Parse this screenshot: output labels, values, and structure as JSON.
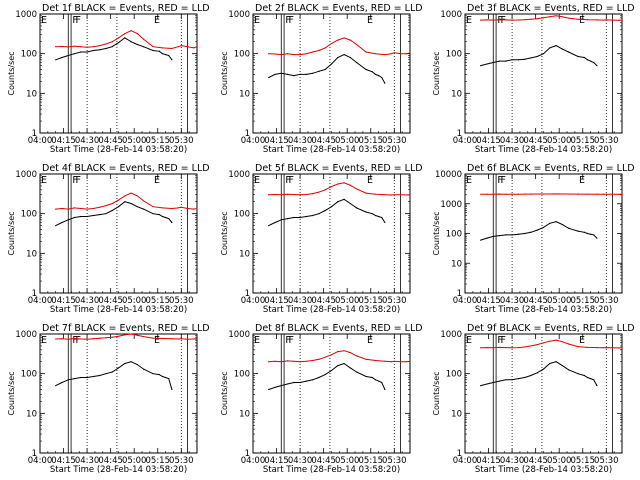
{
  "figure": {
    "x_tick_labels": [
      "04:00",
      "04:15",
      "04:30",
      "04:45",
      "05:00",
      "05:15",
      "05:30"
    ],
    "x_label": "Start Time (28-Feb-14 03:58:20)",
    "y_label": "Counts/sec",
    "flag_labels": [
      "E",
      "F",
      "F",
      "E"
    ],
    "colors": {
      "events": "#000000",
      "lld": "#e00000",
      "frame": "#000000"
    }
  },
  "chart_data": [
    {
      "type": "line",
      "title": "Det 1f BLACK = Events, RED = LLD",
      "xlabel": "Start Time (28-Feb-14 03:58:20)",
      "ylabel": "Counts/sec",
      "y_scale": "log",
      "ylim": [
        1,
        1000
      ],
      "y_tick_labels": [
        "1",
        "10",
        "100",
        "1000"
      ],
      "x_range_minutes": [
        0,
        100
      ],
      "series": [
        {
          "name": "LLD",
          "x": [
            10,
            14,
            18,
            22,
            26,
            30,
            34,
            38,
            42,
            46,
            50,
            54,
            58,
            62,
            66,
            72,
            78,
            84,
            88,
            90,
            94,
            98,
            100
          ],
          "y": [
            150,
            152,
            148,
            155,
            150,
            145,
            150,
            160,
            175,
            200,
            250,
            320,
            380,
            320,
            230,
            150,
            140,
            135,
            150,
            160,
            150,
            140,
            150
          ]
        },
        {
          "name": "Events",
          "x": [
            10,
            14,
            18,
            22,
            26,
            30,
            34,
            38,
            42,
            46,
            50,
            54,
            58,
            62,
            66,
            72,
            76,
            78,
            80,
            82,
            84
          ],
          "y": [
            70,
            80,
            90,
            100,
            110,
            110,
            120,
            125,
            135,
            150,
            190,
            250,
            200,
            170,
            150,
            120,
            115,
            100,
            95,
            90,
            70
          ]
        }
      ]
    },
    {
      "type": "line",
      "title": "Det 2f BLACK = Events, RED = LLD",
      "xlabel": "Start Time (28-Feb-14 03:58:20)",
      "ylabel": "Counts/sec",
      "y_scale": "log",
      "ylim": [
        1,
        1000
      ],
      "y_tick_labels": [
        "1",
        "10",
        "100",
        "1000"
      ],
      "x_range_minutes": [
        0,
        100
      ],
      "series": [
        {
          "name": "LLD",
          "x": [
            10,
            14,
            18,
            22,
            26,
            30,
            34,
            38,
            42,
            46,
            50,
            54,
            58,
            62,
            66,
            72,
            78,
            84,
            88,
            90,
            94,
            98,
            100
          ],
          "y": [
            100,
            98,
            95,
            100,
            95,
            95,
            100,
            110,
            120,
            140,
            180,
            220,
            250,
            220,
            170,
            110,
            100,
            95,
            100,
            105,
            100,
            100,
            105
          ]
        },
        {
          "name": "Events",
          "x": [
            10,
            14,
            18,
            22,
            26,
            30,
            34,
            38,
            42,
            46,
            50,
            54,
            58,
            62,
            66,
            72,
            76,
            78,
            80,
            82,
            84
          ],
          "y": [
            25,
            30,
            32,
            30,
            28,
            30,
            30,
            32,
            36,
            40,
            55,
            80,
            95,
            80,
            60,
            40,
            35,
            30,
            28,
            25,
            18
          ]
        }
      ]
    },
    {
      "type": "line",
      "title": "Det 3f BLACK = Events, RED = LLD",
      "xlabel": "Start Time (28-Feb-14 03:58:20)",
      "ylabel": "Counts/sec",
      "y_scale": "log",
      "ylim": [
        1,
        1000
      ],
      "y_tick_labels": [
        "1",
        "10",
        "100",
        "1000"
      ],
      "x_range_minutes": [
        0,
        100
      ],
      "series": [
        {
          "name": "LLD",
          "x": [
            10,
            14,
            18,
            22,
            26,
            30,
            34,
            38,
            42,
            46,
            50,
            54,
            58,
            62,
            66,
            72,
            78,
            84,
            88,
            90,
            94,
            98,
            100
          ],
          "y": [
            700,
            710,
            700,
            720,
            710,
            700,
            705,
            720,
            740,
            760,
            800,
            850,
            900,
            850,
            790,
            740,
            720,
            710,
            700,
            710,
            700,
            695,
            700
          ]
        },
        {
          "name": "Events",
          "x": [
            10,
            14,
            18,
            22,
            26,
            30,
            34,
            38,
            42,
            46,
            50,
            54,
            58,
            62,
            66,
            72,
            76,
            78,
            80,
            82,
            84
          ],
          "y": [
            50,
            55,
            60,
            65,
            65,
            70,
            70,
            72,
            78,
            85,
            100,
            140,
            160,
            130,
            110,
            85,
            80,
            70,
            65,
            60,
            50
          ]
        }
      ]
    },
    {
      "type": "line",
      "title": "Det 4f BLACK = Events, RED = LLD",
      "xlabel": "Start Time (28-Feb-14 03:58:20)",
      "ylabel": "Counts/sec",
      "y_scale": "log",
      "ylim": [
        1,
        1000
      ],
      "y_tick_labels": [
        "1",
        "10",
        "100",
        "1000"
      ],
      "x_range_minutes": [
        0,
        100
      ],
      "series": [
        {
          "name": "LLD",
          "x": [
            10,
            14,
            18,
            22,
            26,
            30,
            34,
            38,
            42,
            46,
            50,
            54,
            58,
            62,
            66,
            72,
            78,
            84,
            88,
            90,
            94,
            98,
            100
          ],
          "y": [
            130,
            135,
            130,
            140,
            135,
            130,
            135,
            145,
            160,
            180,
            220,
            280,
            330,
            280,
            210,
            150,
            140,
            135,
            140,
            145,
            135,
            130,
            135
          ]
        },
        {
          "name": "Events",
          "x": [
            10,
            14,
            18,
            22,
            26,
            30,
            34,
            38,
            42,
            46,
            50,
            54,
            58,
            62,
            66,
            72,
            76,
            78,
            80,
            82,
            84
          ],
          "y": [
            50,
            60,
            70,
            80,
            85,
            85,
            90,
            95,
            100,
            120,
            150,
            200,
            180,
            150,
            130,
            100,
            95,
            85,
            80,
            75,
            60
          ]
        }
      ]
    },
    {
      "type": "line",
      "title": "Det 5f BLACK = Events, RED = LLD",
      "xlabel": "Start Time (28-Feb-14 03:58:20)",
      "ylabel": "Counts/sec",
      "y_scale": "log",
      "ylim": [
        1,
        1000
      ],
      "y_tick_labels": [
        "1",
        "10",
        "100",
        "1000"
      ],
      "x_range_minutes": [
        0,
        100
      ],
      "series": [
        {
          "name": "LLD",
          "x": [
            10,
            14,
            18,
            22,
            26,
            30,
            34,
            38,
            42,
            46,
            50,
            54,
            58,
            62,
            66,
            72,
            78,
            84,
            88,
            90,
            94,
            98,
            100
          ],
          "y": [
            300,
            305,
            300,
            310,
            305,
            300,
            305,
            320,
            350,
            400,
            480,
            560,
            600,
            520,
            420,
            330,
            310,
            300,
            295,
            300,
            300,
            295,
            300
          ]
        },
        {
          "name": "Events",
          "x": [
            10,
            14,
            18,
            22,
            26,
            30,
            34,
            38,
            42,
            46,
            50,
            54,
            58,
            62,
            66,
            72,
            76,
            78,
            80,
            82,
            84
          ],
          "y": [
            50,
            60,
            70,
            75,
            80,
            80,
            85,
            90,
            100,
            120,
            150,
            200,
            230,
            180,
            140,
            110,
            100,
            90,
            85,
            80,
            60
          ]
        }
      ]
    },
    {
      "type": "line",
      "title": "Det 6f BLACK = Events, RED = LLD",
      "xlabel": "Start Time (28-Feb-14 03:58:20)",
      "ylabel": "Counts/sec",
      "y_scale": "log",
      "ylim": [
        1,
        10000
      ],
      "y_tick_labels": [
        "1",
        "10",
        "100",
        "1000",
        "10000"
      ],
      "x_range_minutes": [
        0,
        100
      ],
      "series": [
        {
          "name": "LLD",
          "x": [
            10,
            14,
            18,
            22,
            26,
            30,
            34,
            38,
            42,
            46,
            50,
            54,
            58,
            62,
            66,
            72,
            78,
            84,
            88,
            90,
            94,
            98,
            100
          ],
          "y": [
            2100,
            2100,
            2100,
            2110,
            2100,
            2100,
            2100,
            2110,
            2110,
            2120,
            2120,
            2130,
            2140,
            2130,
            2120,
            2110,
            2100,
            2100,
            2100,
            2100,
            2100,
            2100,
            2100
          ]
        },
        {
          "name": "Events",
          "x": [
            10,
            14,
            18,
            22,
            26,
            30,
            34,
            38,
            42,
            46,
            50,
            54,
            58,
            62,
            66,
            72,
            76,
            78,
            80,
            82,
            84
          ],
          "y": [
            60,
            70,
            80,
            85,
            90,
            90,
            95,
            100,
            110,
            130,
            160,
            220,
            250,
            200,
            150,
            120,
            110,
            100,
            95,
            90,
            70
          ]
        }
      ]
    },
    {
      "type": "line",
      "title": "Det 7f BLACK = Events, RED = LLD",
      "xlabel": "Start Time (28-Feb-14 03:58:20)",
      "ylabel": "Counts/sec",
      "y_scale": "log",
      "ylim": [
        1,
        1000
      ],
      "y_tick_labels": [
        "1",
        "10",
        "100",
        "1000"
      ],
      "x_range_minutes": [
        0,
        100
      ],
      "series": [
        {
          "name": "LLD",
          "x": [
            10,
            14,
            18,
            22,
            26,
            30,
            34,
            38,
            42,
            46,
            50,
            54,
            58,
            62,
            66,
            72,
            78,
            84,
            88,
            90,
            94,
            98,
            100
          ],
          "y": [
            750,
            760,
            740,
            770,
            750,
            740,
            760,
            780,
            800,
            830,
            880,
            950,
            1000,
            930,
            860,
            790,
            770,
            760,
            750,
            760,
            740,
            750,
            760
          ]
        },
        {
          "name": "Events",
          "x": [
            10,
            14,
            18,
            22,
            26,
            30,
            34,
            38,
            42,
            46,
            50,
            54,
            58,
            62,
            66,
            72,
            76,
            78,
            80,
            82,
            84
          ],
          "y": [
            50,
            60,
            70,
            75,
            80,
            80,
            85,
            90,
            100,
            110,
            140,
            180,
            200,
            170,
            130,
            100,
            95,
            85,
            80,
            75,
            40
          ]
        }
      ]
    },
    {
      "type": "line",
      "title": "Det 8f BLACK = Events, RED = LLD",
      "xlabel": "Start Time (28-Feb-14 03:58:20)",
      "ylabel": "Counts/sec",
      "y_scale": "log",
      "ylim": [
        1,
        1000
      ],
      "y_tick_labels": [
        "1",
        "10",
        "100",
        "1000"
      ],
      "x_range_minutes": [
        0,
        100
      ],
      "series": [
        {
          "name": "LLD",
          "x": [
            10,
            14,
            18,
            22,
            26,
            30,
            34,
            38,
            42,
            46,
            50,
            54,
            58,
            62,
            66,
            72,
            78,
            84,
            88,
            90,
            94,
            98,
            100
          ],
          "y": [
            200,
            205,
            200,
            210,
            205,
            200,
            205,
            215,
            230,
            260,
            300,
            360,
            380,
            340,
            280,
            230,
            215,
            205,
            200,
            205,
            200,
            200,
            205
          ]
        },
        {
          "name": "Events",
          "x": [
            10,
            14,
            18,
            22,
            26,
            30,
            34,
            38,
            42,
            46,
            50,
            54,
            58,
            62,
            66,
            72,
            76,
            78,
            80,
            82,
            84
          ],
          "y": [
            40,
            45,
            50,
            55,
            60,
            60,
            65,
            70,
            80,
            95,
            120,
            160,
            180,
            140,
            110,
            85,
            80,
            70,
            65,
            60,
            40
          ]
        }
      ]
    },
    {
      "type": "line",
      "title": "Det 9f BLACK = Events, RED = LLD",
      "xlabel": "Start Time (28-Feb-14 03:58:20)",
      "ylabel": "Counts/sec",
      "y_scale": "log",
      "ylim": [
        1,
        1000
      ],
      "y_tick_labels": [
        "1",
        "10",
        "100",
        "1000"
      ],
      "x_range_minutes": [
        0,
        100
      ],
      "series": [
        {
          "name": "LLD",
          "x": [
            10,
            14,
            18,
            22,
            26,
            30,
            34,
            38,
            42,
            46,
            50,
            54,
            58,
            62,
            66,
            72,
            78,
            84,
            88,
            90,
            94,
            98,
            100
          ],
          "y": [
            450,
            455,
            450,
            460,
            455,
            450,
            455,
            470,
            500,
            540,
            600,
            660,
            700,
            640,
            560,
            480,
            460,
            455,
            450,
            455,
            450,
            445,
            450
          ]
        },
        {
          "name": "Events",
          "x": [
            10,
            14,
            18,
            22,
            26,
            30,
            34,
            38,
            42,
            46,
            50,
            54,
            58,
            62,
            66,
            72,
            76,
            78,
            80,
            82,
            84
          ],
          "y": [
            50,
            55,
            60,
            65,
            70,
            70,
            75,
            80,
            90,
            105,
            130,
            180,
            200,
            160,
            125,
            100,
            90,
            80,
            75,
            70,
            50
          ]
        }
      ]
    }
  ]
}
